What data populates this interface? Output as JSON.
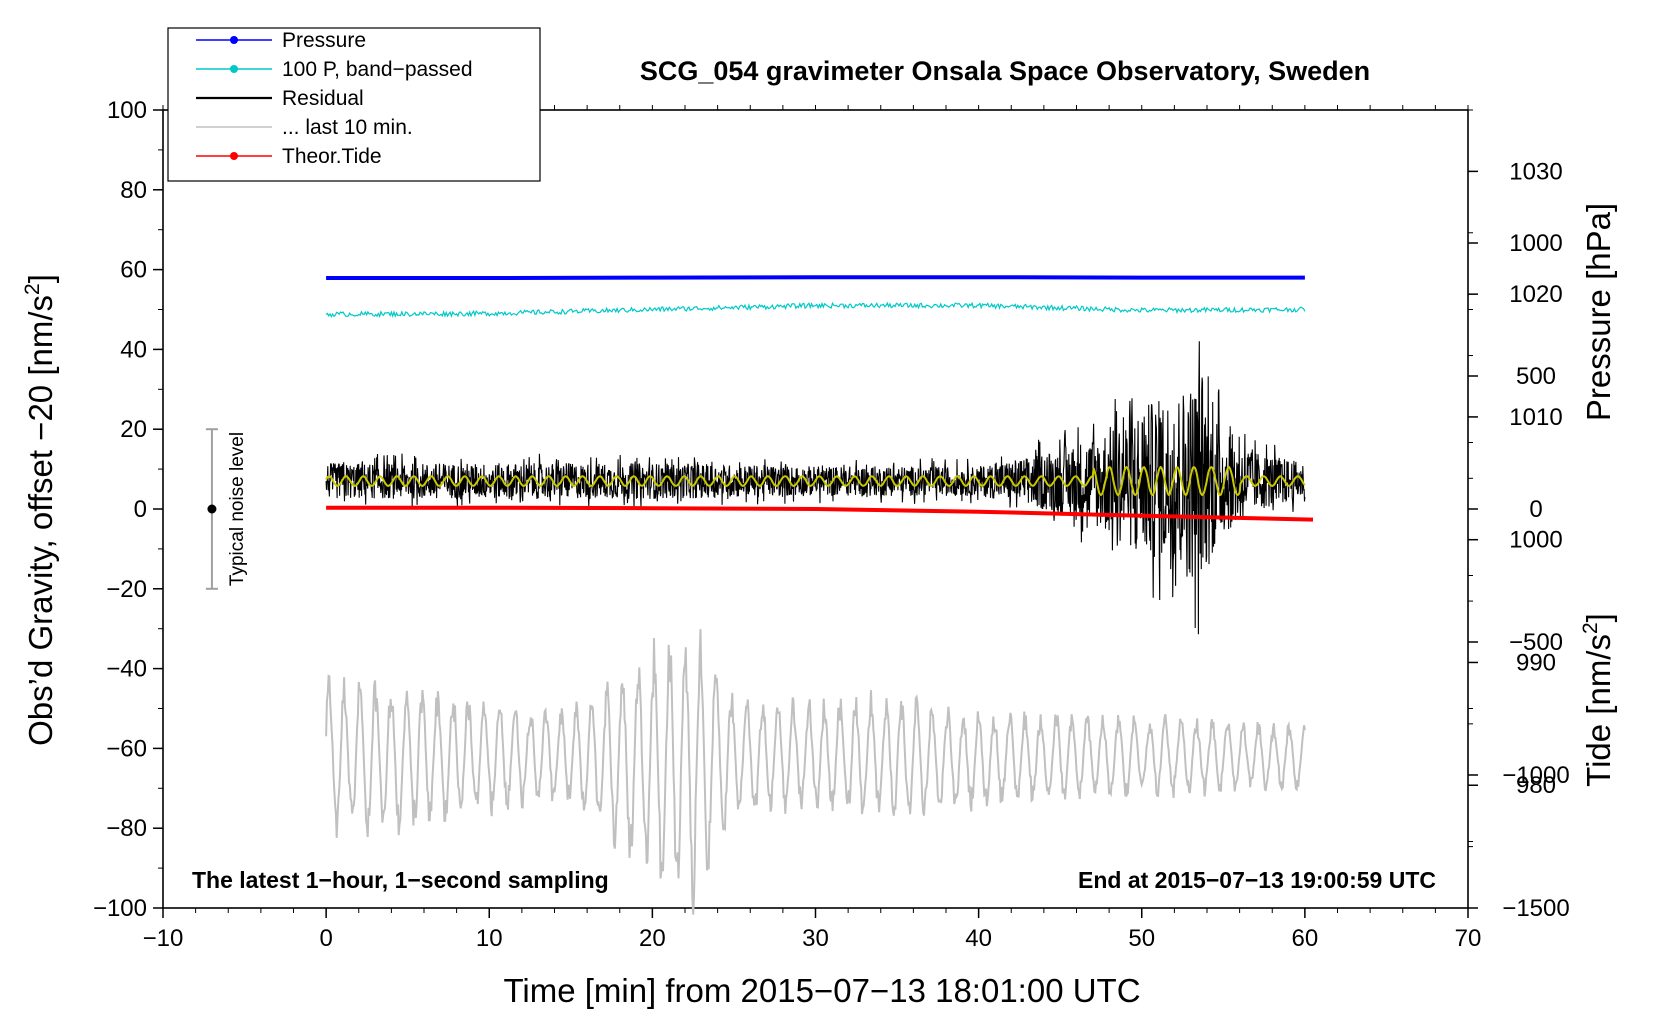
{
  "chart_data": {
    "type": "line",
    "title": "SCG_054 gravimeter Onsala Space Observatory, Sweden",
    "xlabel": "Time [min] from 2015−07−13 18:01:00 UTC",
    "ylabel_left": "Obs’d Gravity, offset −20 [nm/s",
    "ylabel_left_sup": "2",
    "ylabel_left_end": "]",
    "ylabel_right_pressure": "Pressure [hPa]",
    "ylabel_right_tide": "Tide [nm/s",
    "ylabel_right_tide_sup": "2",
    "ylabel_right_tide_end": "]",
    "xlim": [
      -10,
      70
    ],
    "ylim_left": [
      -100,
      100
    ],
    "ylim_pressure": [
      970,
      1035
    ],
    "ylim_tide": [
      -1500,
      1500
    ],
    "x_ticks": [
      -10,
      0,
      10,
      20,
      30,
      40,
      50,
      60,
      70
    ],
    "x_tick_labels": [
      "−10",
      "0",
      "10",
      "20",
      "30",
      "40",
      "50",
      "60",
      "70"
    ],
    "y_left_ticks": [
      100,
      80,
      60,
      40,
      20,
      0,
      -20,
      -40,
      -60,
      -80,
      -100
    ],
    "y_left_tick_labels": [
      "100",
      "80",
      "60",
      "40",
      "20",
      "0",
      "−20",
      "−40",
      "−60",
      "−80",
      "−100"
    ],
    "pressure_ticks": [
      1030,
      1020,
      1010,
      1000,
      990,
      980
    ],
    "pressure_tick_labels": [
      "1030",
      "1020",
      "1010",
      "1000",
      "990",
      "980"
    ],
    "tide_ticks": [
      1000,
      500,
      0,
      -500,
      -1000,
      -1500
    ],
    "tide_tick_labels": [
      "1000",
      "500",
      "0",
      "−500",
      "−1000",
      "−1500"
    ],
    "note_left": "The latest 1−hour, 1−second sampling",
    "note_right": "End at 2015−07−13 19:00:59 UTC",
    "noise_bar": {
      "x": -7,
      "center": 0,
      "low": -20,
      "high": 20,
      "label": "Typical noise level"
    },
    "legend": [
      {
        "label": "Pressure",
        "color": "#0000ff",
        "marker": true
      },
      {
        "label": "100 P, band−passed",
        "color": "#00c8c8",
        "marker": true
      },
      {
        "label": "Residual",
        "color": "#000000",
        "marker": false
      },
      {
        "label": "... last 10 min.",
        "color": "#c0c0c0",
        "marker": false
      },
      {
        "label": "Theor.Tide",
        "color": "#ff0000",
        "marker": true
      }
    ],
    "series": [
      {
        "name": "Pressure",
        "axis": "left",
        "color": "#0000ff",
        "x": [
          0,
          10,
          20,
          30,
          40,
          50,
          60
        ],
        "values": [
          57.9,
          57.9,
          58.0,
          58.1,
          58.1,
          58.0,
          58.0
        ]
      },
      {
        "name": "100 P, band−passed",
        "axis": "left",
        "color": "#00c8c8",
        "x": [
          0,
          10,
          20,
          30,
          40,
          50,
          60
        ],
        "values": [
          48.8,
          49.0,
          50.0,
          51.0,
          51.0,
          49.8,
          50.0
        ]
      },
      {
        "name": "Residual",
        "axis": "left",
        "color": "#000000",
        "x": [
          0,
          10,
          20,
          30,
          40,
          43,
          47,
          50,
          52,
          53.5,
          55,
          57,
          60
        ],
        "envelope": [
          6,
          6,
          6,
          5,
          5,
          8,
          15,
          25,
          30,
          35,
          18,
          10,
          6
        ],
        "values": [
          7,
          7,
          7,
          7,
          7,
          7,
          7,
          7,
          7,
          7,
          7,
          7,
          7
        ]
      },
      {
        "name": "Residual smoothed",
        "axis": "left",
        "color": "#c8c800",
        "x": [
          0,
          10,
          20,
          30,
          40,
          47,
          50,
          53,
          56,
          60
        ],
        "values": [
          7,
          7,
          7,
          7,
          7,
          7,
          7,
          7,
          7,
          7
        ]
      },
      {
        "name": "... last 10 min.",
        "axis": "left",
        "color": "#c0c0c0",
        "x": [
          0,
          5,
          10,
          15,
          20,
          22.5,
          25,
          30,
          35,
          40,
          45,
          50,
          55,
          60
        ],
        "center": [
          -62,
          -62,
          -62,
          -62,
          -64,
          -64,
          -62,
          -62,
          -62,
          -63,
          -62,
          -62,
          -62,
          -62
        ],
        "envelope": [
          20,
          18,
          14,
          12,
          30,
          35,
          15,
          14,
          16,
          12,
          11,
          10,
          9,
          8
        ]
      },
      {
        "name": "Theor.Tide",
        "axis": "tide",
        "color": "#ff0000",
        "x": [
          0,
          10,
          20,
          30,
          40,
          50,
          60.5
        ],
        "values": [
          5,
          5,
          3,
          0,
          -10,
          -25,
          -40
        ]
      }
    ]
  }
}
